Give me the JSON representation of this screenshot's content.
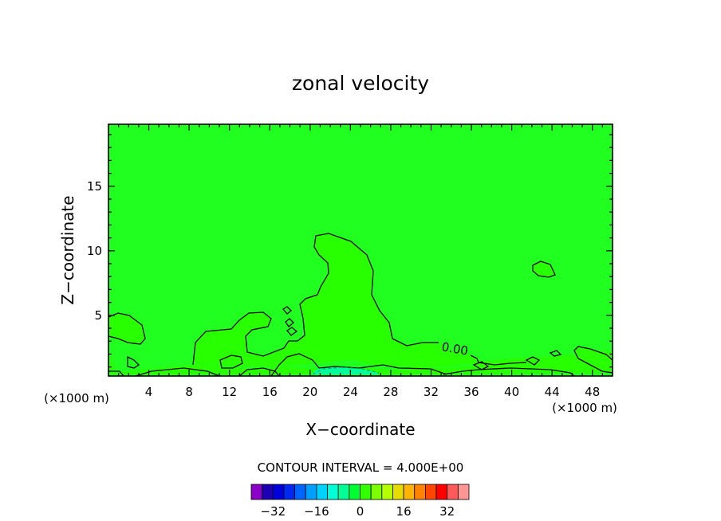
{
  "chart_data": {
    "type": "contour",
    "title": "zonal velocity",
    "xlabel": "X−coordinate",
    "ylabel": "Z−coordinate",
    "x_unit_left": "(×1000 m)",
    "x_unit_right": "(×1000 m)",
    "xlim": [
      0,
      50
    ],
    "ylim": [
      0.3,
      19.8
    ],
    "x_ticks": [
      4,
      8,
      12,
      16,
      20,
      24,
      28,
      32,
      36,
      40,
      44,
      48
    ],
    "y_ticks": [
      5,
      10,
      15
    ],
    "contour_label": "0.00",
    "contour_interval_text": "CONTOUR INTERVAL = 4.000E+00",
    "contour_interval": 4.0,
    "colorbar": {
      "tick_labels": [
        "−32",
        "−16",
        "0",
        "16",
        "32"
      ],
      "tick_values": [
        -32,
        -16,
        0,
        16,
        32
      ],
      "levels": [
        -36,
        -32,
        -28,
        -24,
        -20,
        -16,
        -12,
        -8,
        -4,
        0,
        4,
        8,
        12,
        16,
        20,
        24,
        28,
        32,
        36
      ],
      "colors": [
        "#8a00c8",
        "#1e00b4",
        "#0000dc",
        "#0028f0",
        "#0064ff",
        "#00a0ff",
        "#00d2ff",
        "#00ffd8",
        "#00ff96",
        "#00ff32",
        "#32ff00",
        "#7cff00",
        "#b4ff00",
        "#e6dc00",
        "#ffb400",
        "#ff8200",
        "#ff4600",
        "#ff0000",
        "#ff5a5a",
        "#ff9696"
      ]
    },
    "fill_colors": {
      "background": "#20ff20",
      "positive_region": "#28ff00",
      "negative_region": "#00ff9a"
    }
  }
}
